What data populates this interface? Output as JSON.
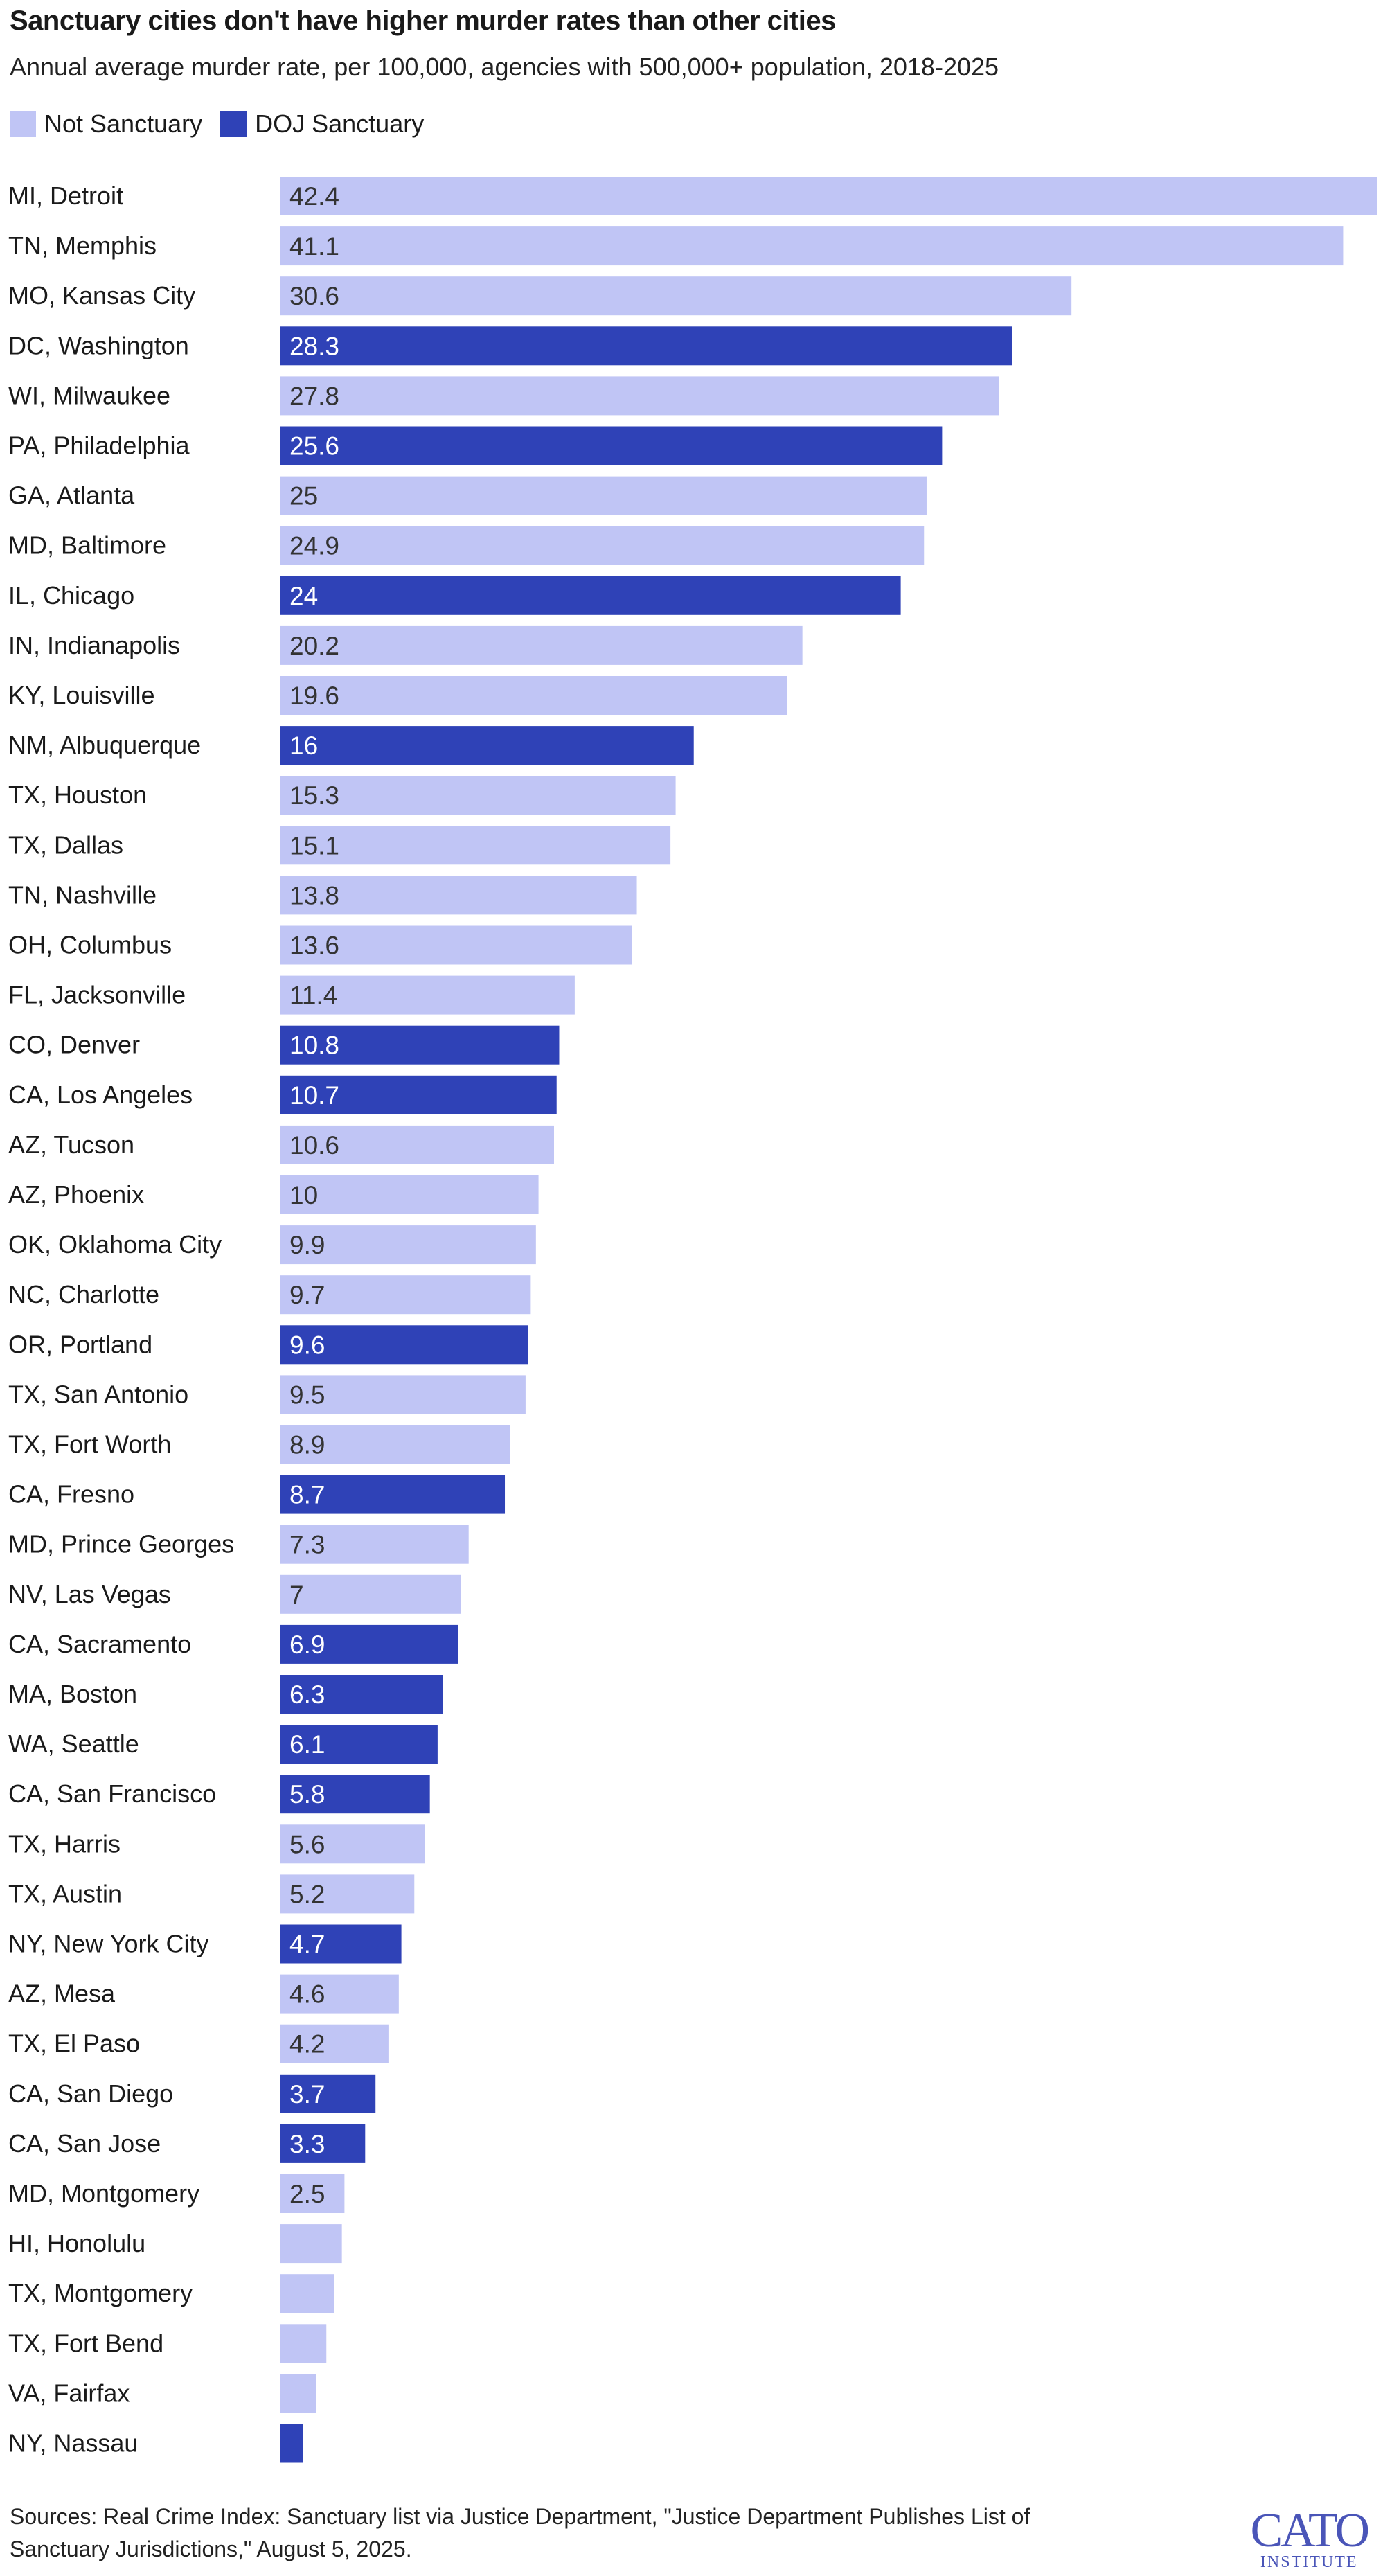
{
  "title": "Sanctuary cities don't have higher murder rates than other cities",
  "subtitle": "Annual average murder rate, per 100,000, agencies with 500,000+ population, 2018-2025",
  "legend": [
    {
      "label": "Not Sanctuary",
      "color": "#c0c5f5"
    },
    {
      "label": "DOJ Sanctuary",
      "color": "#2f42b7"
    }
  ],
  "chart_data": {
    "type": "bar",
    "orientation": "horizontal",
    "title": "Sanctuary cities don't have higher murder rates than other cities",
    "categories": [
      "MI, Detroit",
      "TN, Memphis",
      "MO, Kansas City",
      "DC, Washington",
      "WI, Milwaukee",
      "PA, Philadelphia",
      "GA, Atlanta",
      "MD, Baltimore",
      "IL, Chicago",
      "IN, Indianapolis",
      "KY, Louisville",
      "NM, Albuquerque",
      "TX, Houston",
      "TX, Dallas",
      "TN, Nashville",
      "OH, Columbus",
      "FL, Jacksonville",
      "CO, Denver",
      "CA, Los Angeles",
      "AZ, Tucson",
      "AZ, Phoenix",
      "OK, Oklahoma City",
      "NC, Charlotte",
      "OR, Portland",
      "TX, San Antonio",
      "TX, Fort Worth",
      "CA, Fresno",
      "MD, Prince Georges",
      "NV, Las Vegas",
      "CA, Sacramento",
      "MA, Boston",
      "WA, Seattle",
      "CA, San Francisco",
      "TX, Harris",
      "TX, Austin",
      "NY, New York City",
      "AZ, Mesa",
      "TX, El Paso",
      "CA, San Diego",
      "CA, San Jose",
      "MD, Montgomery",
      "HI, Honolulu",
      "TX, Montgomery",
      "TX, Fort Bend",
      "VA, Fairfax",
      "NY, Nassau"
    ],
    "values": [
      42.4,
      41.1,
      30.6,
      28.3,
      27.8,
      25.6,
      25,
      24.9,
      24,
      20.2,
      19.6,
      16,
      15.3,
      15.1,
      13.8,
      13.6,
      11.4,
      10.8,
      10.7,
      10.6,
      10,
      9.9,
      9.7,
      9.6,
      9.5,
      8.9,
      8.7,
      7.3,
      7,
      6.9,
      6.3,
      6.1,
      5.8,
      5.6,
      5.2,
      4.7,
      4.6,
      4.2,
      3.7,
      3.3,
      2.5,
      2.4,
      2.1,
      1.8,
      1.4,
      0.9
    ],
    "labels": [
      "42.4",
      "41.1",
      "30.6",
      "28.3",
      "27.8",
      "25.6",
      "25",
      "24.9",
      "24",
      "20.2",
      "19.6",
      "16",
      "15.3",
      "15.1",
      "13.8",
      "13.6",
      "11.4",
      "10.8",
      "10.7",
      "10.6",
      "10",
      "9.9",
      "9.7",
      "9.6",
      "9.5",
      "8.9",
      "8.7",
      "7.3",
      "7",
      "6.9",
      "6.3",
      "6.1",
      "5.8",
      "5.6",
      "5.2",
      "4.7",
      "4.6",
      "4.2",
      "3.7",
      "3.3",
      "2.5",
      "",
      "",
      "",
      "",
      ""
    ],
    "sanctuary": [
      false,
      false,
      false,
      true,
      false,
      true,
      false,
      false,
      true,
      false,
      false,
      true,
      false,
      false,
      false,
      false,
      false,
      true,
      true,
      false,
      false,
      false,
      false,
      true,
      false,
      false,
      true,
      false,
      false,
      true,
      true,
      true,
      true,
      false,
      false,
      true,
      false,
      false,
      true,
      true,
      false,
      false,
      false,
      false,
      false,
      true
    ],
    "xlim": [
      0,
      42.4
    ],
    "colors": {
      "not_sanctuary": "#c0c5f5",
      "sanctuary": "#2f42b7",
      "label_on_light": "#333333",
      "label_on_dark": "#ffffff"
    }
  },
  "footer": {
    "line1": "Sources: Real Crime Index: Sanctuary list via Justice Department, \"Justice Department Publishes List of",
    "line2": "Sanctuary Jurisdictions,\" August 5, 2025."
  },
  "logo": {
    "main": "CATO",
    "sub": "INSTITUTE"
  }
}
